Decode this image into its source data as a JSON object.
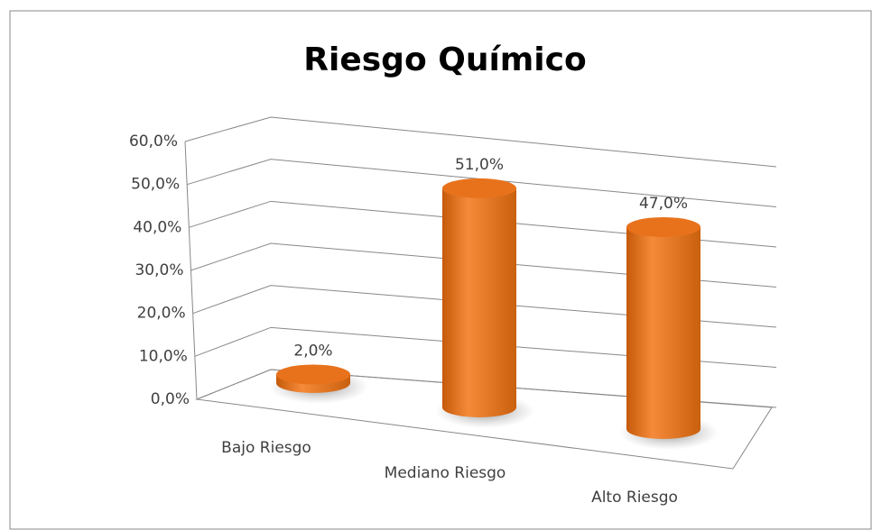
{
  "chart_data": {
    "type": "bar3d",
    "title": "Riesgo Químico",
    "categories": [
      "Bajo Riesgo",
      "Mediano Riesgo",
      "Alto Riesgo"
    ],
    "values": [
      2,
      51,
      47
    ],
    "value_labels": [
      "2,0%",
      "51,0%",
      "47,0%"
    ],
    "color": "#e46c0a",
    "ylim": [
      0,
      60
    ],
    "yticks": [
      {
        "value": 0,
        "label": "0,0%"
      },
      {
        "value": 10,
        "label": "10,0%"
      },
      {
        "value": 20,
        "label": "20,0%"
      },
      {
        "value": 30,
        "label": "30,0%"
      },
      {
        "value": 40,
        "label": "40,0%"
      },
      {
        "value": 50,
        "label": "50,0%"
      },
      {
        "value": 60,
        "label": "60,0%"
      }
    ],
    "grid": true
  }
}
